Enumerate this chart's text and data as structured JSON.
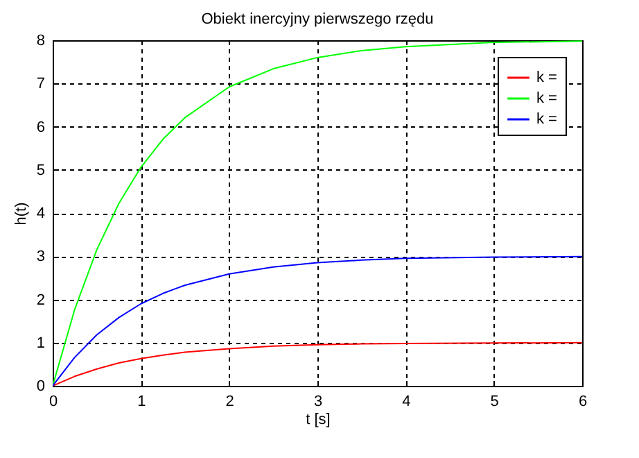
{
  "chart_data": {
    "type": "line",
    "title": "Obiekt inercyjny pierwszego rzędu",
    "xlabel": "t [s]",
    "ylabel": "h(t)",
    "x": [
      0,
      0.25,
      0.5,
      0.75,
      1,
      1.25,
      1.5,
      2,
      2.5,
      3,
      3.5,
      4,
      5,
      6
    ],
    "series": [
      {
        "name": "k =",
        "color": "#ff0000",
        "values": [
          0,
          0.22,
          0.39,
          0.53,
          0.63,
          0.71,
          0.78,
          0.86,
          0.92,
          0.95,
          0.97,
          0.98,
          0.99,
          1.0
        ]
      },
      {
        "name": "k =",
        "color": "#00ff00",
        "values": [
          0,
          1.77,
          3.15,
          4.22,
          5.06,
          5.71,
          6.21,
          6.92,
          7.34,
          7.6,
          7.76,
          7.85,
          7.95,
          7.98
        ]
      },
      {
        "name": "k =",
        "color": "#0000ff",
        "values": [
          0,
          0.66,
          1.18,
          1.58,
          1.9,
          2.14,
          2.33,
          2.59,
          2.75,
          2.85,
          2.91,
          2.95,
          2.98,
          2.99
        ]
      }
    ],
    "xlim": [
      0,
      6
    ],
    "xticks": [
      0,
      1,
      2,
      3,
      4,
      5,
      6
    ],
    "ylim": [
      0,
      8
    ],
    "yticks": [
      0,
      1,
      2,
      3,
      4,
      5,
      6,
      7,
      8
    ],
    "grid": true,
    "legend": "top right",
    "line_style": "solid"
  }
}
